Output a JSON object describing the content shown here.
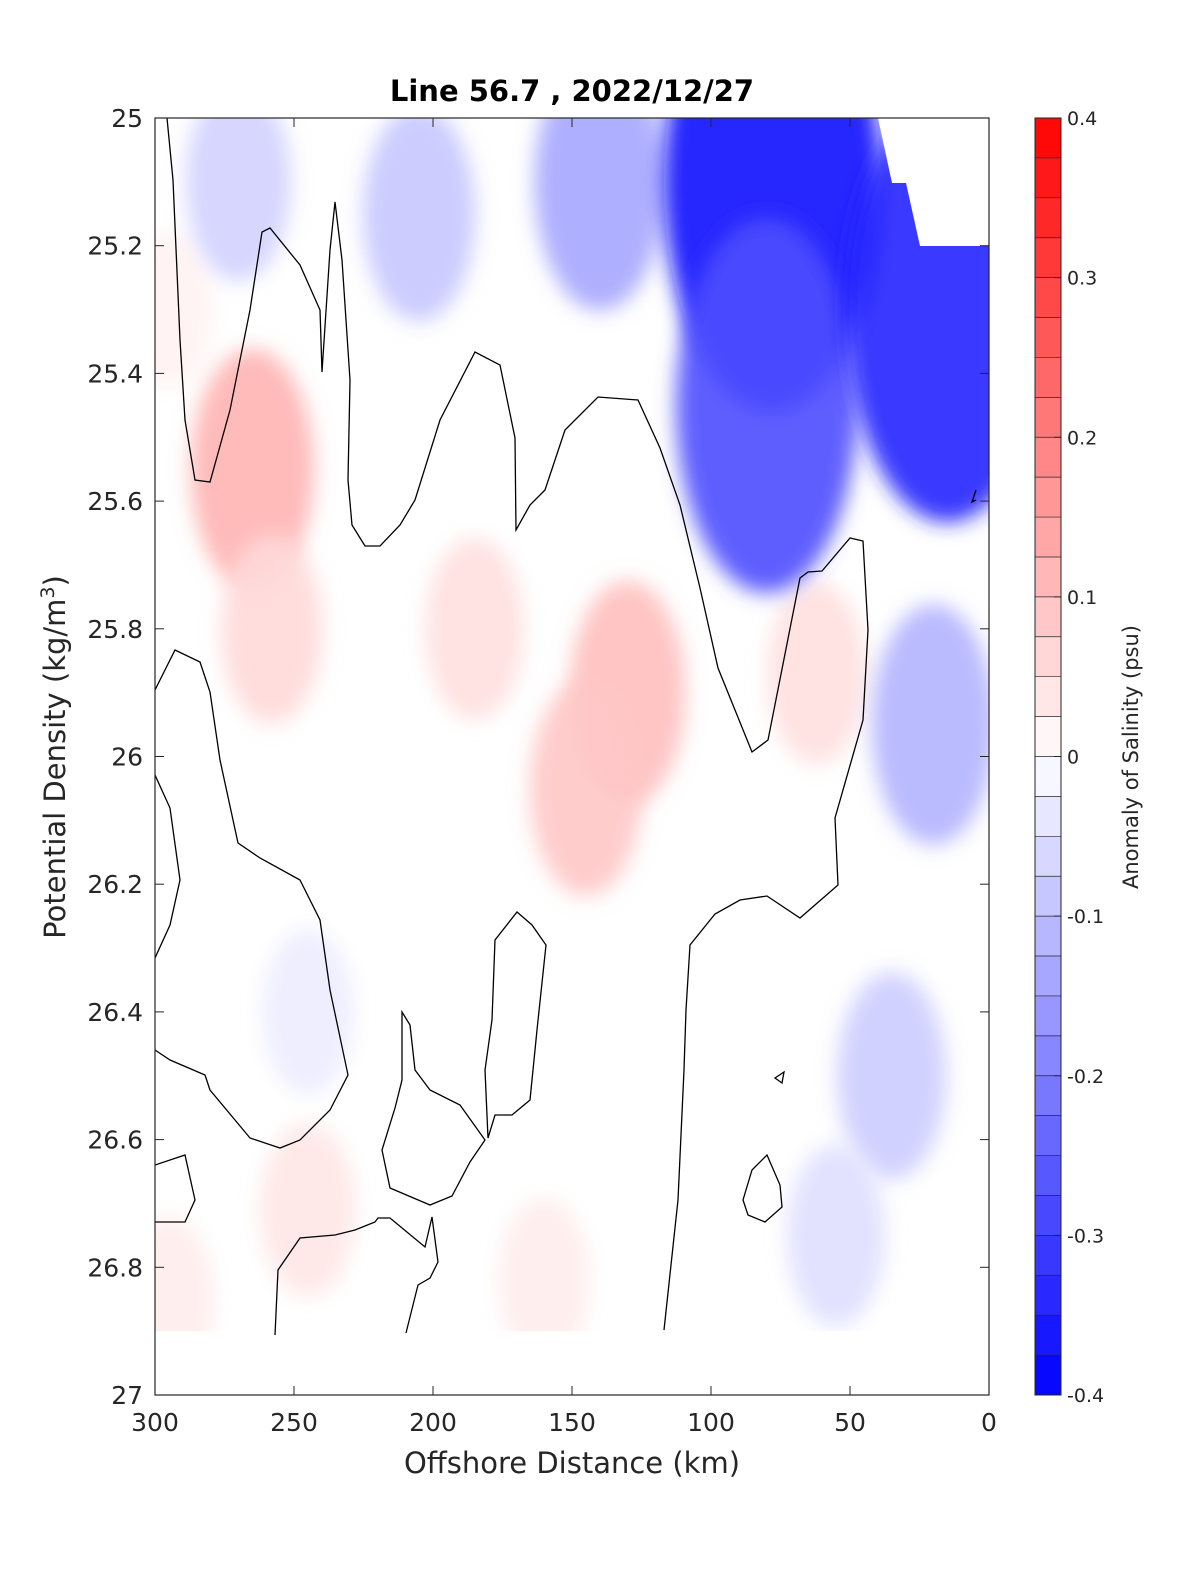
{
  "chart_data": {
    "type": "heatmap",
    "title": "Line 56.7 , 2022/12/27",
    "xlabel": "Offshore Distance (km)",
    "ylabel_main": "Potential Density (kg/m",
    "ylabel_sup": "3",
    "ylabel_close": ")",
    "colorbar_label": "Anomaly of Salinity (psu)",
    "xlim": [
      300,
      0
    ],
    "ylim": [
      25,
      27
    ],
    "x_reversed": true,
    "y_reversed": true,
    "xticks": [
      300,
      250,
      200,
      150,
      100,
      50,
      0
    ],
    "yticks": [
      25,
      25.2,
      25.4,
      25.6,
      25.8,
      26,
      26.2,
      26.4,
      26.6,
      26.8,
      27
    ],
    "xtick_labels": [
      "300",
      "250",
      "200",
      "150",
      "100",
      "50",
      "0"
    ],
    "ytick_labels": [
      "25",
      "25.2",
      "25.4",
      "25.6",
      "25.8",
      "26",
      "26.2",
      "26.4",
      "26.6",
      "26.8",
      "27"
    ],
    "colorbar": {
      "range": [
        -0.4,
        0.4
      ],
      "levels": 32,
      "ticks": [
        0.4,
        0.3,
        0.2,
        0.1,
        0,
        -0.1,
        -0.2,
        -0.3,
        -0.4
      ],
      "tick_labels": [
        "0.4",
        "0.3",
        "0.2",
        "0.1",
        "0",
        "-0.1",
        "-0.2",
        "-0.3",
        "-0.4"
      ],
      "colormap": "blue-white-red",
      "low_color": "#0000ff",
      "mid_color": "#ffffff",
      "high_color": "#ff0000"
    },
    "grid": false,
    "data_extent_y_max": 26.9,
    "zero_contour_color": "#000000",
    "anomaly_features": [
      {
        "x": 295,
        "y": 25.3,
        "value": 0.02
      },
      {
        "x": 265,
        "y": 25.55,
        "value": 0.12
      },
      {
        "x": 258,
        "y": 25.8,
        "value": 0.06
      },
      {
        "x": 185,
        "y": 25.8,
        "value": 0.05
      },
      {
        "x": 130,
        "y": 25.9,
        "value": 0.1
      },
      {
        "x": 145,
        "y": 26.05,
        "value": 0.09
      },
      {
        "x": 245,
        "y": 26.71,
        "value": 0.04
      },
      {
        "x": 295,
        "y": 26.85,
        "value": 0.03
      },
      {
        "x": 160,
        "y": 26.82,
        "value": 0.03
      },
      {
        "x": 62,
        "y": 25.87,
        "value": 0.05
      },
      {
        "x": 270,
        "y": 25.1,
        "value": -0.07
      },
      {
        "x": 205,
        "y": 25.15,
        "value": -0.09
      },
      {
        "x": 140,
        "y": 25.1,
        "value": -0.14
      },
      {
        "x": 78,
        "y": 25.1,
        "value": -0.38
      },
      {
        "x": 80,
        "y": 25.45,
        "value": -0.28
      },
      {
        "x": 15,
        "y": 25.3,
        "value": -0.34
      },
      {
        "x": 20,
        "y": 25.95,
        "value": -0.12
      },
      {
        "x": 35,
        "y": 26.5,
        "value": -0.08
      },
      {
        "x": 55,
        "y": 26.75,
        "value": -0.05
      },
      {
        "x": 245,
        "y": 26.4,
        "value": -0.03
      }
    ]
  }
}
